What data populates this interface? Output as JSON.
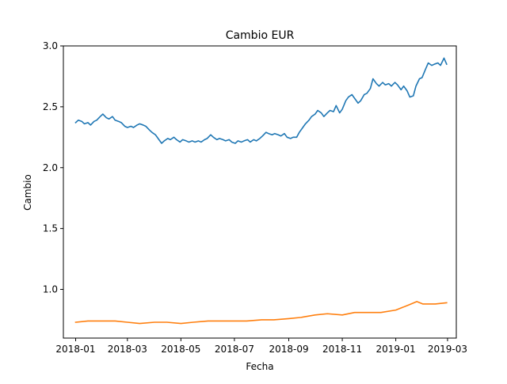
{
  "chart_data": {
    "type": "line",
    "title": "Cambio EUR",
    "xlabel": "Fecha",
    "ylabel": "Cambio",
    "xlim": [
      "2017-12-18",
      "2019-03-11"
    ],
    "ylim": [
      0.6,
      3.0
    ],
    "x_ticks": [
      {
        "value": "2018-01-01",
        "label": "2018-01"
      },
      {
        "value": "2018-03-01",
        "label": "2018-03"
      },
      {
        "value": "2018-05-01",
        "label": "2018-05"
      },
      {
        "value": "2018-07-01",
        "label": "2018-07"
      },
      {
        "value": "2018-09-01",
        "label": "2018-09"
      },
      {
        "value": "2018-11-01",
        "label": "2018-11"
      },
      {
        "value": "2019-01-01",
        "label": "2019-01"
      },
      {
        "value": "2019-03-01",
        "label": "2019-03"
      }
    ],
    "y_ticks": [
      {
        "value": 1.0,
        "label": "1.0"
      },
      {
        "value": 1.5,
        "label": "1.5"
      },
      {
        "value": 2.0,
        "label": "2.0"
      },
      {
        "value": 2.5,
        "label": "2.5"
      },
      {
        "value": 3.0,
        "label": "3.0"
      }
    ],
    "grid": false,
    "legend": "none",
    "series": [
      {
        "color": "#1f77b4",
        "points": [
          [
            "2018-01-01",
            2.37
          ],
          [
            "2018-01-04",
            2.39
          ],
          [
            "2018-01-08",
            2.38
          ],
          [
            "2018-01-11",
            2.36
          ],
          [
            "2018-01-15",
            2.37
          ],
          [
            "2018-01-18",
            2.35
          ],
          [
            "2018-01-22",
            2.38
          ],
          [
            "2018-01-25",
            2.39
          ],
          [
            "2018-01-29",
            2.42
          ],
          [
            "2018-02-01",
            2.44
          ],
          [
            "2018-02-05",
            2.41
          ],
          [
            "2018-02-08",
            2.4
          ],
          [
            "2018-02-12",
            2.42
          ],
          [
            "2018-02-15",
            2.39
          ],
          [
            "2018-02-19",
            2.38
          ],
          [
            "2018-02-22",
            2.37
          ],
          [
            "2018-02-26",
            2.34
          ],
          [
            "2018-03-01",
            2.33
          ],
          [
            "2018-03-05",
            2.34
          ],
          [
            "2018-03-08",
            2.33
          ],
          [
            "2018-03-12",
            2.35
          ],
          [
            "2018-03-15",
            2.36
          ],
          [
            "2018-03-19",
            2.35
          ],
          [
            "2018-03-22",
            2.34
          ],
          [
            "2018-03-26",
            2.31
          ],
          [
            "2018-03-29",
            2.29
          ],
          [
            "2018-04-02",
            2.27
          ],
          [
            "2018-04-05",
            2.24
          ],
          [
            "2018-04-09",
            2.2
          ],
          [
            "2018-04-12",
            2.22
          ],
          [
            "2018-04-16",
            2.24
          ],
          [
            "2018-04-19",
            2.23
          ],
          [
            "2018-04-23",
            2.25
          ],
          [
            "2018-04-26",
            2.23
          ],
          [
            "2018-04-30",
            2.21
          ],
          [
            "2018-05-03",
            2.23
          ],
          [
            "2018-05-07",
            2.22
          ],
          [
            "2018-05-10",
            2.21
          ],
          [
            "2018-05-14",
            2.22
          ],
          [
            "2018-05-17",
            2.21
          ],
          [
            "2018-05-21",
            2.22
          ],
          [
            "2018-05-24",
            2.21
          ],
          [
            "2018-05-28",
            2.23
          ],
          [
            "2018-05-31",
            2.24
          ],
          [
            "2018-06-04",
            2.27
          ],
          [
            "2018-06-07",
            2.25
          ],
          [
            "2018-06-11",
            2.23
          ],
          [
            "2018-06-14",
            2.24
          ],
          [
            "2018-06-18",
            2.23
          ],
          [
            "2018-06-21",
            2.22
          ],
          [
            "2018-06-25",
            2.23
          ],
          [
            "2018-06-28",
            2.21
          ],
          [
            "2018-07-02",
            2.2
          ],
          [
            "2018-07-05",
            2.22
          ],
          [
            "2018-07-09",
            2.21
          ],
          [
            "2018-07-12",
            2.22
          ],
          [
            "2018-07-16",
            2.23
          ],
          [
            "2018-07-19",
            2.21
          ],
          [
            "2018-07-23",
            2.23
          ],
          [
            "2018-07-26",
            2.22
          ],
          [
            "2018-07-30",
            2.24
          ],
          [
            "2018-08-02",
            2.26
          ],
          [
            "2018-08-06",
            2.29
          ],
          [
            "2018-08-09",
            2.28
          ],
          [
            "2018-08-13",
            2.27
          ],
          [
            "2018-08-16",
            2.28
          ],
          [
            "2018-08-20",
            2.27
          ],
          [
            "2018-08-23",
            2.26
          ],
          [
            "2018-08-27",
            2.28
          ],
          [
            "2018-08-30",
            2.25
          ],
          [
            "2018-09-03",
            2.24
          ],
          [
            "2018-09-06",
            2.25
          ],
          [
            "2018-09-10",
            2.25
          ],
          [
            "2018-09-13",
            2.29
          ],
          [
            "2018-09-17",
            2.33
          ],
          [
            "2018-09-20",
            2.36
          ],
          [
            "2018-09-24",
            2.39
          ],
          [
            "2018-09-27",
            2.42
          ],
          [
            "2018-10-01",
            2.44
          ],
          [
            "2018-10-04",
            2.47
          ],
          [
            "2018-10-08",
            2.45
          ],
          [
            "2018-10-11",
            2.42
          ],
          [
            "2018-10-15",
            2.45
          ],
          [
            "2018-10-18",
            2.47
          ],
          [
            "2018-10-22",
            2.46
          ],
          [
            "2018-10-25",
            2.51
          ],
          [
            "2018-10-29",
            2.45
          ],
          [
            "2018-11-01",
            2.48
          ],
          [
            "2018-11-05",
            2.55
          ],
          [
            "2018-11-08",
            2.58
          ],
          [
            "2018-11-12",
            2.6
          ],
          [
            "2018-11-15",
            2.57
          ],
          [
            "2018-11-19",
            2.53
          ],
          [
            "2018-11-22",
            2.55
          ],
          [
            "2018-11-26",
            2.6
          ],
          [
            "2018-11-29",
            2.61
          ],
          [
            "2018-12-03",
            2.65
          ],
          [
            "2018-12-06",
            2.73
          ],
          [
            "2018-12-10",
            2.69
          ],
          [
            "2018-12-13",
            2.67
          ],
          [
            "2018-12-17",
            2.7
          ],
          [
            "2018-12-20",
            2.68
          ],
          [
            "2018-12-24",
            2.69
          ],
          [
            "2018-12-27",
            2.67
          ],
          [
            "2018-12-31",
            2.7
          ],
          [
            "2019-01-03",
            2.68
          ],
          [
            "2019-01-07",
            2.64
          ],
          [
            "2019-01-10",
            2.67
          ],
          [
            "2019-01-14",
            2.63
          ],
          [
            "2019-01-17",
            2.58
          ],
          [
            "2019-01-21",
            2.59
          ],
          [
            "2019-01-24",
            2.67
          ],
          [
            "2019-01-28",
            2.73
          ],
          [
            "2019-01-31",
            2.74
          ],
          [
            "2019-02-04",
            2.81
          ],
          [
            "2019-02-07",
            2.86
          ],
          [
            "2019-02-11",
            2.84
          ],
          [
            "2019-02-14",
            2.85
          ],
          [
            "2019-02-18",
            2.86
          ],
          [
            "2019-02-21",
            2.84
          ],
          [
            "2019-02-25",
            2.9
          ],
          [
            "2019-02-28",
            2.85
          ]
        ]
      },
      {
        "color": "#ff7f0e",
        "points": [
          [
            "2018-01-01",
            0.73
          ],
          [
            "2018-01-15",
            0.74
          ],
          [
            "2018-02-01",
            0.74
          ],
          [
            "2018-02-15",
            0.74
          ],
          [
            "2018-03-01",
            0.73
          ],
          [
            "2018-03-15",
            0.72
          ],
          [
            "2018-04-01",
            0.73
          ],
          [
            "2018-04-15",
            0.73
          ],
          [
            "2018-05-01",
            0.72
          ],
          [
            "2018-05-15",
            0.73
          ],
          [
            "2018-06-01",
            0.74
          ],
          [
            "2018-06-15",
            0.74
          ],
          [
            "2018-07-01",
            0.74
          ],
          [
            "2018-07-15",
            0.74
          ],
          [
            "2018-08-01",
            0.75
          ],
          [
            "2018-08-15",
            0.75
          ],
          [
            "2018-09-01",
            0.76
          ],
          [
            "2018-09-15",
            0.77
          ],
          [
            "2018-10-01",
            0.79
          ],
          [
            "2018-10-15",
            0.8
          ],
          [
            "2018-11-01",
            0.79
          ],
          [
            "2018-11-15",
            0.81
          ],
          [
            "2018-12-01",
            0.81
          ],
          [
            "2018-12-15",
            0.81
          ],
          [
            "2019-01-01",
            0.83
          ],
          [
            "2019-01-15",
            0.87
          ],
          [
            "2019-01-25",
            0.9
          ],
          [
            "2019-02-01",
            0.88
          ],
          [
            "2019-02-15",
            0.88
          ],
          [
            "2019-02-28",
            0.89
          ]
        ]
      }
    ]
  }
}
